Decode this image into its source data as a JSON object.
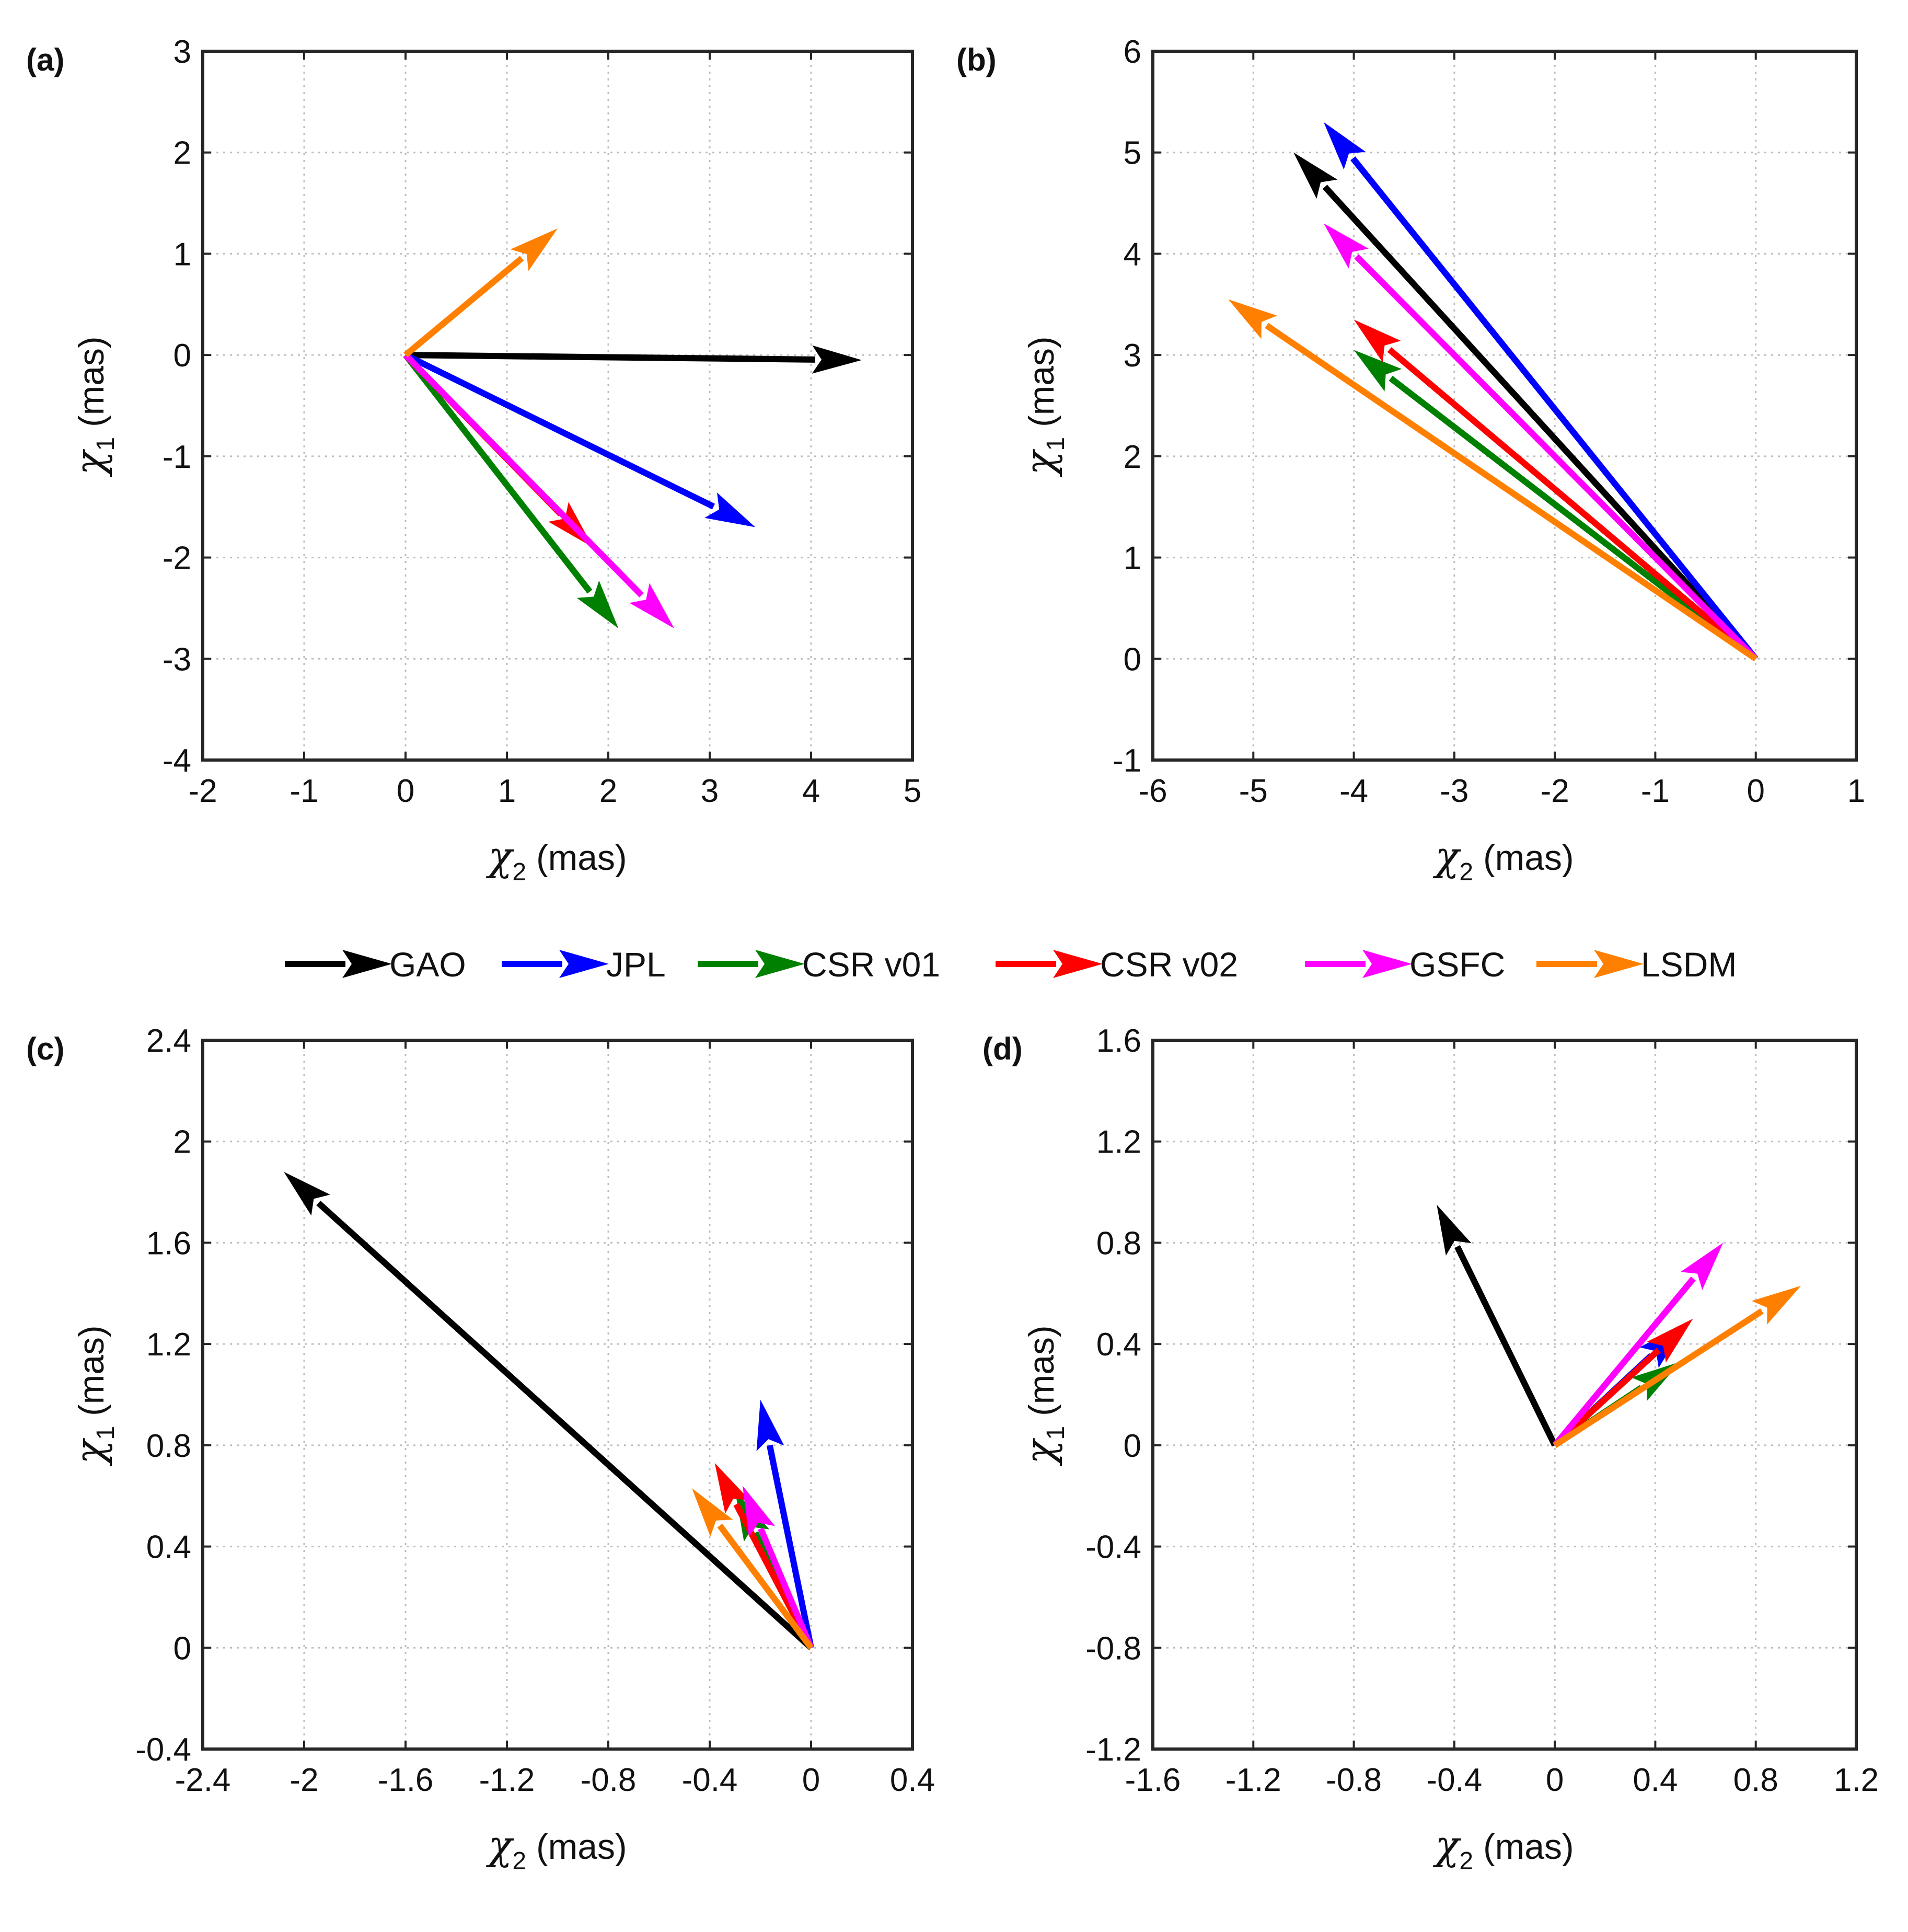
{
  "legend": [
    {
      "key": "GAO",
      "label": "GAO",
      "color": "#000000"
    },
    {
      "key": "JPL",
      "label": "JPL",
      "color": "#0000ff"
    },
    {
      "key": "CSRv01",
      "label": "CSR v01",
      "color": "#008000"
    },
    {
      "key": "CSRv02",
      "label": "CSR v02",
      "color": "#ff0000"
    },
    {
      "key": "GSFC",
      "label": "GSFC",
      "color": "#ff00ff"
    },
    {
      "key": "LSDM",
      "label": "LSDM",
      "color": "#ff8000"
    }
  ],
  "chart_data": [
    {
      "panel": "(a)",
      "type": "quiver",
      "xlabel": {
        "symbol": "χ",
        "sub": "2",
        "unit": "(mas)"
      },
      "ylabel": {
        "symbol": "χ",
        "sub": "1",
        "unit": "(mas)"
      },
      "xlim": [
        -2,
        5
      ],
      "ylim": [
        -4,
        3
      ],
      "xticks": [
        "-2",
        "-1",
        "0",
        "1",
        "2",
        "3",
        "4",
        "5"
      ],
      "yticks": [
        "-4",
        "-3",
        "-2",
        "-1",
        "0",
        "1",
        "2",
        "3"
      ],
      "grid": true,
      "vectors": [
        {
          "series": "GAO",
          "x": 4.5,
          "y": -0.05
        },
        {
          "series": "JPL",
          "x": 3.45,
          "y": -1.7
        },
        {
          "series": "CSRv01",
          "x": 2.1,
          "y": -2.7
        },
        {
          "series": "CSRv02",
          "x": 1.85,
          "y": -1.9
        },
        {
          "series": "GSFC",
          "x": 2.65,
          "y": -2.7
        },
        {
          "series": "LSDM",
          "x": 1.5,
          "y": 1.25
        }
      ]
    },
    {
      "panel": "(b)",
      "type": "quiver",
      "xlabel": {
        "symbol": "χ",
        "sub": "2",
        "unit": "(mas)"
      },
      "ylabel": {
        "symbol": "χ",
        "sub": "1",
        "unit": "(mas)"
      },
      "xlim": [
        -6,
        1
      ],
      "ylim": [
        -1,
        6
      ],
      "xticks": [
        "-6",
        "-5",
        "-4",
        "-3",
        "-2",
        "-1",
        "0",
        "1"
      ],
      "yticks": [
        "-1",
        "0",
        "1",
        "2",
        "3",
        "4",
        "5",
        "6"
      ],
      "grid": true,
      "vectors": [
        {
          "series": "GAO",
          "x": -4.6,
          "y": 5.0
        },
        {
          "series": "JPL",
          "x": -4.3,
          "y": 5.3
        },
        {
          "series": "CSRv01",
          "x": -4.0,
          "y": 3.05
        },
        {
          "series": "CSRv02",
          "x": -4.0,
          "y": 3.35
        },
        {
          "series": "GSFC",
          "x": -4.3,
          "y": 4.3
        },
        {
          "series": "LSDM",
          "x": -5.25,
          "y": 3.55
        }
      ]
    },
    {
      "panel": "(c)",
      "type": "quiver",
      "xlabel": {
        "symbol": "χ",
        "sub": "2",
        "unit": "(mas)"
      },
      "ylabel": {
        "symbol": "χ",
        "sub": "1",
        "unit": "(mas)"
      },
      "xlim": [
        -2.4,
        0.4
      ],
      "ylim": [
        -0.4,
        2.4
      ],
      "xticks": [
        "-2.4",
        "-2",
        "-1.6",
        "-1.2",
        "-0.8",
        "-0.4",
        "0",
        "0.4"
      ],
      "yticks": [
        "-0.4",
        "0",
        "0.4",
        "0.8",
        "1.2",
        "1.6",
        "2",
        "2.4"
      ],
      "grid": true,
      "vectors": [
        {
          "series": "GAO",
          "x": -2.08,
          "y": 1.88
        },
        {
          "series": "JPL",
          "x": -0.2,
          "y": 0.98
        },
        {
          "series": "CSRv01",
          "x": -0.3,
          "y": 0.62
        },
        {
          "series": "CSRv02",
          "x": -0.38,
          "y": 0.73
        },
        {
          "series": "GSFC",
          "x": -0.27,
          "y": 0.64
        },
        {
          "series": "LSDM",
          "x": -0.47,
          "y": 0.63
        }
      ]
    },
    {
      "panel": "(d)",
      "type": "quiver",
      "xlabel": {
        "symbol": "χ",
        "sub": "2",
        "unit": "(mas)"
      },
      "ylabel": {
        "symbol": "χ",
        "sub": "1",
        "unit": "(mas)"
      },
      "xlim": [
        -1.6,
        1.2
      ],
      "ylim": [
        -1.2,
        1.6
      ],
      "xticks": [
        "-1.6",
        "-1.2",
        "-0.8",
        "-0.4",
        "0",
        "0.4",
        "0.8",
        "1.2"
      ],
      "yticks": [
        "-1.2",
        "-0.8",
        "-0.4",
        "0",
        "0.4",
        "0.8",
        "1.2",
        "1.6"
      ],
      "grid": true,
      "vectors": [
        {
          "series": "GAO",
          "x": -0.47,
          "y": 0.95
        },
        {
          "series": "JPL",
          "x": 0.52,
          "y": 0.48
        },
        {
          "series": "CSRv01",
          "x": 0.5,
          "y": 0.33
        },
        {
          "series": "CSRv02",
          "x": 0.55,
          "y": 0.5
        },
        {
          "series": "GSFC",
          "x": 0.67,
          "y": 0.8
        },
        {
          "series": "LSDM",
          "x": 0.98,
          "y": 0.63
        }
      ]
    }
  ]
}
